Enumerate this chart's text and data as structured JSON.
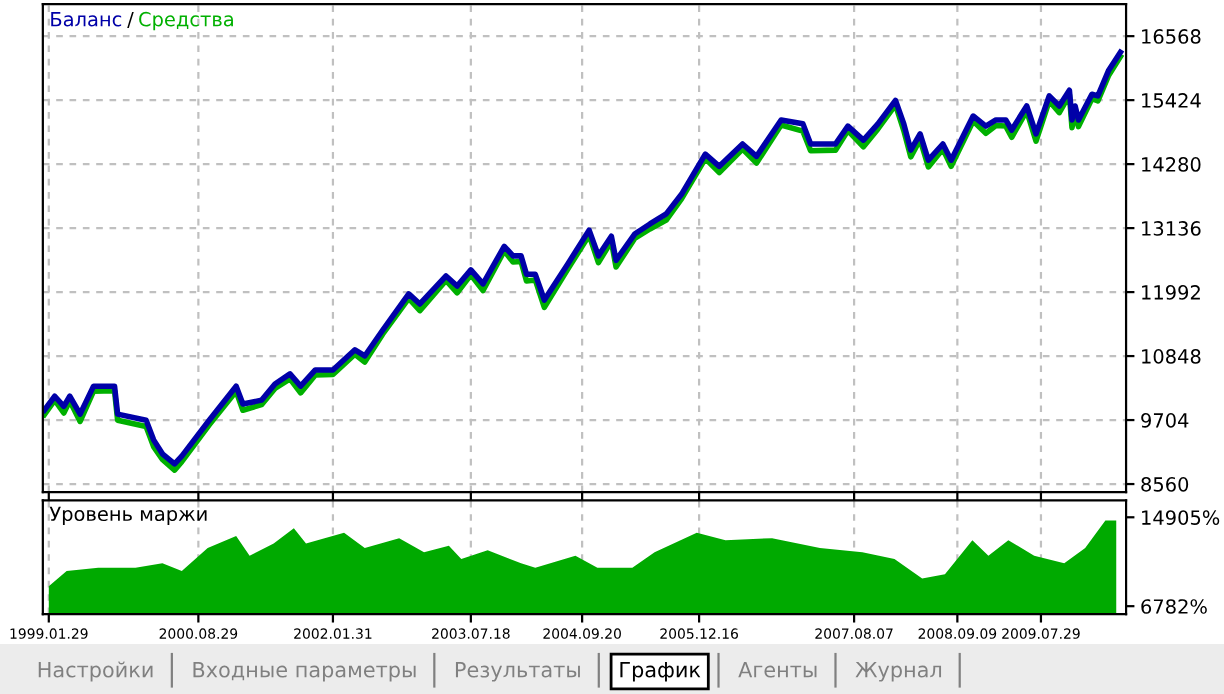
{
  "chart_data": [
    {
      "type": "line",
      "grid": true,
      "tick_labels": "y",
      "annotations": [
        "/"
      ],
      "xlim": [
        "1999-01-06",
        "2010-06-23"
      ],
      "xticks": [
        {
          "value": "1999-01-29",
          "label": null
        },
        {
          "value": "2000-08-29",
          "label": null
        },
        {
          "value": "2002-01-31",
          "label": null
        },
        {
          "value": "2003-07-18",
          "label": null
        },
        {
          "value": "2004-09-20",
          "label": null
        },
        {
          "value": "2005-12-16",
          "label": null
        },
        {
          "value": "2007-08-07",
          "label": null
        },
        {
          "value": "2008-09-09",
          "label": null
        },
        {
          "value": "2009-07-29",
          "label": null
        }
      ],
      "ylim": [
        8417,
        17140
      ],
      "yticks": [
        8560,
        9704,
        10848,
        11992,
        13136,
        14280,
        15424,
        16568
      ],
      "x": [
        "1999-01-12",
        "1999-02-21",
        "1999-03-28",
        "1999-04-20",
        "1999-05-30",
        "1999-07-21",
        "1999-10-10",
        "1999-10-22",
        "2000-02-09",
        "2000-03-09",
        "2000-04-12",
        "2000-05-29",
        "2000-06-26",
        "2000-10-10",
        "2001-01-22",
        "2001-02-17",
        "2001-04-30",
        "2001-06-21",
        "2001-08-18",
        "2001-09-28",
        "2001-11-24",
        "2002-01-31",
        "2002-04-26",
        "2002-06-03",
        "2002-08-11",
        "2002-11-20",
        "2003-01-02",
        "2003-04-13",
        "2003-05-26",
        "2003-07-18",
        "2003-09-03",
        "2003-11-24",
        "2003-12-28",
        "2004-01-28",
        "2004-02-18",
        "2004-03-23",
        "2004-04-27",
        "2004-07-26",
        "2004-10-17",
        "2004-11-22",
        "2005-01-11",
        "2005-01-29",
        "2005-04-11",
        "2005-06-09",
        "2005-08-11",
        "2005-10-09",
        "2006-01-09",
        "2006-03-04",
        "2006-06-02",
        "2006-07-26",
        "2006-10-29",
        "2007-01-21",
        "2007-02-20",
        "2007-05-27",
        "2007-07-14",
        "2007-09-12",
        "2007-11-07",
        "2008-01-14",
        "2008-02-15",
        "2008-03-13",
        "2008-04-18",
        "2008-05-20",
        "2008-07-15",
        "2008-08-16",
        "2008-11-09",
        "2008-12-28",
        "2009-02-05",
        "2009-03-15",
        "2009-04-07",
        "2009-06-04",
        "2009-07-10",
        "2009-08-30",
        "2009-10-08",
        "2009-11-16",
        "2009-11-26",
        "2009-12-08",
        "2009-12-21",
        "2010-02-11",
        "2010-03-06",
        "2010-04-17",
        "2010-06-01"
      ],
      "series": [
        {
          "name": "Средства",
          "color": "#00b000",
          "values": [
            9800,
            10060,
            9830,
            10050,
            9680,
            10220,
            10230,
            9700,
            9590,
            9230,
            9000,
            8810,
            8960,
            9620,
            10220,
            9880,
            9980,
            10270,
            10440,
            10190,
            10510,
            10520,
            10880,
            10740,
            11240,
            11880,
            11660,
            12200,
            11980,
            12300,
            12020,
            12730,
            12530,
            12540,
            12190,
            12210,
            11720,
            12400,
            13010,
            12520,
            12900,
            12440,
            12950,
            13120,
            13280,
            13660,
            14380,
            14130,
            14550,
            14300,
            14980,
            14870,
            14520,
            14530,
            14880,
            14590,
            14910,
            15340,
            14880,
            14410,
            14720,
            14230,
            14550,
            14240,
            15050,
            14830,
            14970,
            14960,
            14760,
            15230,
            14690,
            15410,
            15200,
            15520,
            14930,
            15210,
            14950,
            15450,
            15410,
            15870,
            16200
          ]
        },
        {
          "name": "Баланс",
          "color": "#0000a8",
          "values": [
            9880,
            10130,
            9950,
            10130,
            9810,
            10310,
            10310,
            9810,
            9700,
            9350,
            9100,
            8920,
            9060,
            9700,
            10310,
            9990,
            10060,
            10350,
            10530,
            10310,
            10600,
            10600,
            10960,
            10850,
            11310,
            11960,
            11780,
            12280,
            12100,
            12390,
            12140,
            12810,
            12640,
            12640,
            12310,
            12310,
            11850,
            12490,
            13100,
            12640,
            12990,
            12560,
            13030,
            13210,
            13390,
            13740,
            14460,
            14240,
            14640,
            14420,
            15070,
            15000,
            14640,
            14640,
            14960,
            14710,
            15000,
            15420,
            15000,
            14530,
            14820,
            14350,
            14640,
            14350,
            15140,
            14960,
            15070,
            15070,
            14890,
            15320,
            14820,
            15500,
            15320,
            15600,
            15070,
            15320,
            15070,
            15530,
            15500,
            15960,
            16280
          ]
        }
      ]
    },
    {
      "type": "area",
      "title": "Уровень маржи",
      "grid": "x",
      "xlim": [
        "1999-01-06",
        "2010-06-23"
      ],
      "xticks": [
        {
          "value": "1999-01-29",
          "label": "1999.01.29"
        },
        {
          "value": "2000-08-29",
          "label": "2000.08.29"
        },
        {
          "value": "2002-01-31",
          "label": "2002.01.31"
        },
        {
          "value": "2003-07-18",
          "label": "2003.07.18"
        },
        {
          "value": "2004-09-20",
          "label": "2004.09.20"
        },
        {
          "value": "2005-12-16",
          "label": "2005.12.16"
        },
        {
          "value": "2007-08-07",
          "label": "2007.08.07"
        },
        {
          "value": "2008-09-09",
          "label": "2008.09.09"
        },
        {
          "value": "2009-07-29",
          "label": "2009.07.29"
        }
      ],
      "ylim": [
        6050,
        16450
      ],
      "yticks": [
        {
          "value": 6782,
          "label": "6782%"
        },
        {
          "value": 14905,
          "label": "14905%"
        }
      ],
      "x": [
        "1999-01-29",
        "1999-04-08",
        "1999-08-08",
        "1999-12-30",
        "2000-04-12",
        "2000-06-26",
        "2000-10-04",
        "2001-01-22",
        "2001-03-15",
        "2001-06-16",
        "2001-09-02",
        "2001-10-19",
        "2002-03-15",
        "2002-06-03",
        "2002-10-14",
        "2003-01-18",
        "2003-04-24",
        "2003-06-11",
        "2003-09-21",
        "2004-01-28",
        "2004-03-23",
        "2004-08-25",
        "2004-11-18",
        "2005-04-02",
        "2005-06-27",
        "2005-12-07",
        "2006-03-28",
        "2006-09-24",
        "2007-03-28",
        "2007-09-08",
        "2008-01-10",
        "2008-04-26",
        "2008-07-23",
        "2008-11-06",
        "2009-01-07",
        "2009-03-25",
        "2009-07-03",
        "2009-10-27",
        "2010-01-16",
        "2010-04-04",
        "2010-05-16"
      ],
      "series": [
        {
          "color": "#00aa00",
          "values": [
            8600,
            10000,
            10300,
            10300,
            10700,
            10000,
            12100,
            13200,
            11400,
            12500,
            13900,
            12500,
            13500,
            12100,
            13000,
            11700,
            12300,
            11100,
            11900,
            10700,
            10300,
            11400,
            10300,
            10300,
            11700,
            13500,
            12800,
            13000,
            12100,
            11700,
            11100,
            9300,
            9700,
            12800,
            11400,
            12800,
            11400,
            10700,
            12100,
            14600,
            14600
          ]
        }
      ]
    },
    {
      "type": "other",
      "annotations": [
        "Настройки",
        "Входные параметры",
        "Результаты",
        "График",
        "Агенты",
        "Журнал"
      ]
    }
  ]
}
